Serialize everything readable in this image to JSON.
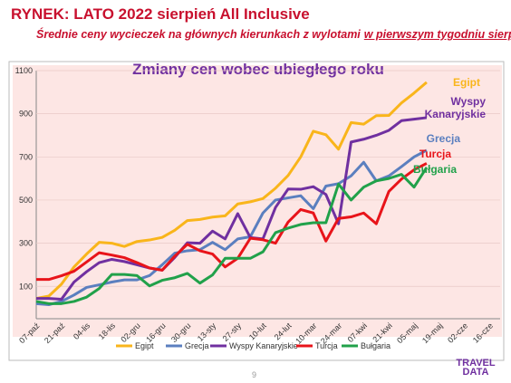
{
  "header": {
    "title": "RYNEK: LATO 2022 sierpień All Inclusive",
    "subtitle": "Średnie ceny wycieczek na głównych kierunkach z wylotami",
    "subtitle_underlined": "w pierwszym tygodniu sierpnia"
  },
  "chart_data": {
    "type": "line",
    "title": "Zmiany cen wobec ubiegłego roku",
    "categories": [
      "07-paź",
      null,
      "21-paź",
      null,
      "04-lis",
      null,
      "18-lis",
      null,
      "02-gru",
      null,
      "16-gru",
      null,
      "30-gru",
      null,
      "13-sty",
      null,
      "27-sty",
      null,
      "10-lut",
      null,
      "24-lut",
      null,
      "10-mar",
      null,
      "24-mar",
      null,
      "07-kwi",
      null,
      "21-kwi",
      null,
      "05-maj",
      null,
      "19-maj",
      null,
      "02-cze",
      null,
      "16-cze"
    ],
    "series": [
      {
        "name": "Egipt",
        "color": "#f9b51b",
        "values": [
          44,
          55,
          110,
          190,
          250,
          304,
          300,
          285,
          308,
          315,
          327,
          360,
          405,
          410,
          421,
          427,
          482,
          492,
          507,
          555,
          614,
          700,
          819,
          803,
          736,
          859,
          852,
          891,
          892,
          950,
          996,
          1046,
          null,
          null,
          null,
          null,
          null
        ]
      },
      {
        "name": "Grecja",
        "color": "#5b7fbf",
        "values": [
          20,
          15,
          30,
          60,
          95,
          107,
          120,
          130,
          130,
          150,
          200,
          254,
          265,
          270,
          304,
          270,
          320,
          330,
          440,
          500,
          510,
          520,
          460,
          565,
          576,
          612,
          675,
          589,
          612,
          655,
          700,
          731,
          null,
          null,
          null,
          null,
          null
        ]
      },
      {
        "name": "Wyspy Kanaryjskie",
        "color": "#7030a0",
        "values": [
          44,
          44,
          40,
          120,
          168,
          210,
          225,
          215,
          200,
          185,
          175,
          234,
          302,
          300,
          356,
          320,
          437,
          326,
          320,
          466,
          551,
          550,
          562,
          526,
          390,
          769,
          782,
          800,
          823,
          868,
          875,
          882,
          null,
          null,
          null,
          null,
          null
        ]
      },
      {
        "name": "Turcja",
        "color": "#e8141a",
        "values": [
          132,
          132,
          149,
          170,
          213,
          256,
          245,
          233,
          210,
          185,
          175,
          240,
          295,
          265,
          250,
          190,
          230,
          323,
          316,
          300,
          398,
          456,
          440,
          310,
          415,
          422,
          440,
          390,
          540,
          597,
          640,
          670,
          null,
          null,
          null,
          null,
          null
        ]
      },
      {
        "name": "Bułgaria",
        "color": "#21a14a",
        "values": [
          30,
          20,
          20,
          30,
          50,
          90,
          155,
          155,
          150,
          102,
          128,
          140,
          160,
          115,
          153,
          230,
          230,
          230,
          260,
          349,
          370,
          387,
          395,
          395,
          574,
          500,
          560,
          589,
          600,
          619,
          560,
          651,
          null,
          null,
          null,
          null,
          null
        ]
      }
    ],
    "ylim": [
      -50,
      1100
    ],
    "yticks": [
      100,
      300,
      500,
      700,
      900,
      1100
    ],
    "grid": true
  },
  "page_number": "9",
  "logo": "TRAVEL DATA"
}
